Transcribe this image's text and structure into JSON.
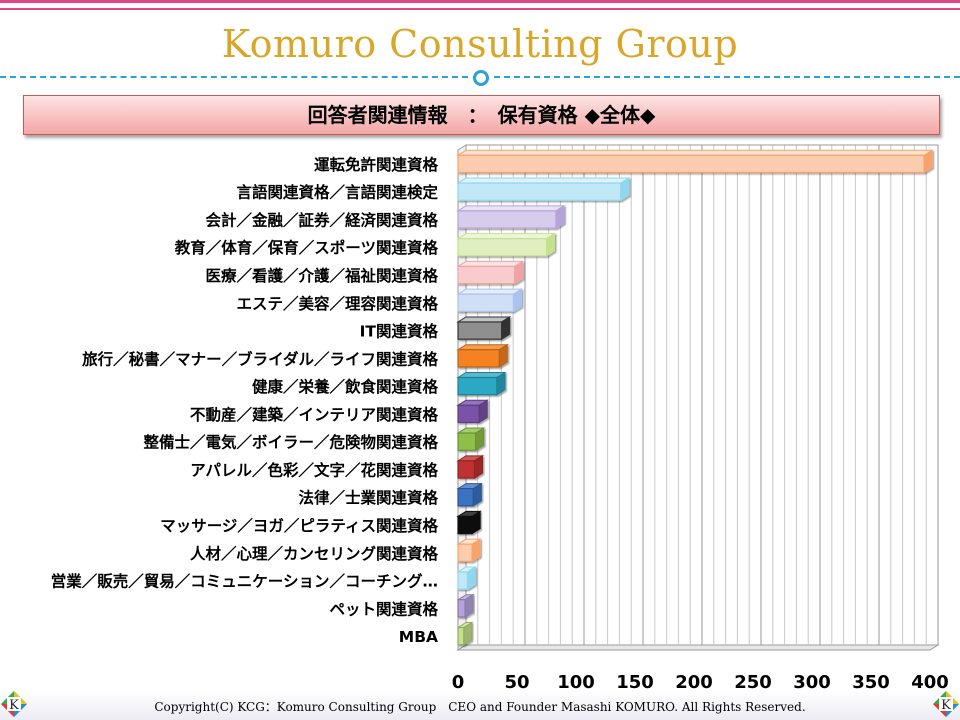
{
  "brand": "Komuro Consulting Group",
  "slide_title": "回答者関連情報　：　保有資格 ◆全体◆",
  "copyright": "Copyright(C)  KCG：Komuro Consulting Group　CEO and Founder  Masashi KOMURO. All Rights Reserved.",
  "logo_letter": "K",
  "chart_data": {
    "type": "bar",
    "orientation": "horizontal",
    "categories": [
      "運転免許関連資格",
      "言語関連資格／言語関連検定",
      "会計／金融／証券／経済関連資格",
      "教育／体育／保育／スポーツ関連資格",
      "医療／看護／介護／福祉関連資格",
      "エステ／美容／理容関連資格",
      "IT関連資格",
      "旅行／秘書／マナー／ブライダル／ライフ関連資格",
      "健康／栄養／飲食関連資格",
      "不動産／建築／インテリア関連資格",
      "整備士／電気／ボイラー／危険物関連資格",
      "アパレル／色彩／文字／花関連資格",
      "法律／士業関連資格",
      "マッサージ／ヨガ／ピラティス関連資格",
      "人材／心理／カンセリング関連資格",
      "営業／販売／貿易／コミュニケーション／コーチング…",
      "ペット関連資格",
      "MBA"
    ],
    "values": [
      395,
      138,
      83,
      75,
      48,
      47,
      37,
      35,
      33,
      18,
      15,
      14,
      13,
      12,
      12,
      8,
      6,
      5
    ],
    "colors": [
      "#f7a36a",
      "#8fd6ee",
      "#b6a2dc",
      "#c4e28a",
      "#f2a2a4",
      "#a9c4ef",
      "#333333",
      "#f58220",
      "#2aa8c4",
      "#7a52a8",
      "#8ec048",
      "#c03030",
      "#3a72c4",
      "#111111",
      "#f7a36a",
      "#8fd6ee",
      "#b6a2dc",
      "#c4e28a"
    ],
    "fills": [
      "light",
      "light",
      "light",
      "light",
      "light",
      "light",
      "light",
      "dark",
      "dark",
      "dark",
      "dark",
      "dark",
      "dark",
      "dark",
      "light",
      "light",
      "dark",
      "dark"
    ],
    "xticks": [
      0,
      50,
      100,
      150,
      200,
      250,
      300,
      350,
      400
    ],
    "xlim": [
      0,
      400
    ],
    "grid": true,
    "legend": "none"
  }
}
